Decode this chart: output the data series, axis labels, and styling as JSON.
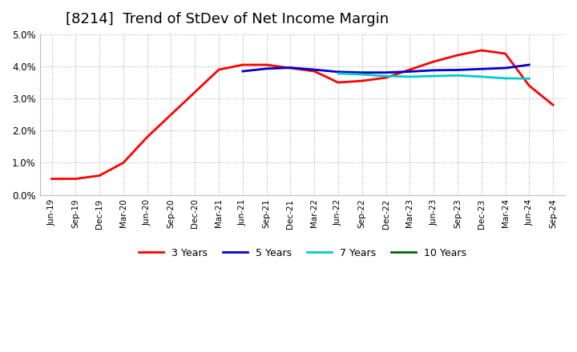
{
  "title": "[8214]  Trend of StDev of Net Income Margin",
  "title_fontsize": 13,
  "background_color": "#ffffff",
  "plot_background": "#ffffff",
  "grid_color": "#aaaaaa",
  "ylim": [
    0.0,
    0.05
  ],
  "yticks": [
    0.0,
    0.01,
    0.02,
    0.03,
    0.04,
    0.05
  ],
  "x_labels": [
    "Jun-19",
    "Sep-19",
    "Dec-19",
    "Mar-20",
    "Jun-20",
    "Sep-20",
    "Dec-20",
    "Mar-21",
    "Jun-21",
    "Sep-21",
    "Dec-21",
    "Mar-22",
    "Jun-22",
    "Sep-22",
    "Dec-22",
    "Mar-23",
    "Jun-23",
    "Sep-23",
    "Dec-23",
    "Mar-24",
    "Jun-24",
    "Sep-24"
  ],
  "series": {
    "3 Years": {
      "color": "#ff0000",
      "linewidth": 2.0,
      "values": [
        0.005,
        0.005,
        0.006,
        0.01,
        0.018,
        0.025,
        0.032,
        0.039,
        0.0405,
        0.0405,
        0.0395,
        0.0385,
        0.035,
        0.0355,
        0.0365,
        0.039,
        0.0415,
        0.0435,
        0.045,
        0.044,
        0.034,
        0.028
      ]
    },
    "5 Years": {
      "color": "#0000cc",
      "linewidth": 2.0,
      "values": [
        null,
        null,
        null,
        null,
        null,
        null,
        null,
        null,
        0.0385,
        0.0393,
        0.0396,
        0.039,
        0.0383,
        0.0381,
        0.0381,
        0.0384,
        0.0388,
        0.0389,
        0.0392,
        0.0395,
        0.0405,
        null
      ]
    },
    "7 Years": {
      "color": "#00cccc",
      "linewidth": 2.0,
      "values": [
        null,
        null,
        null,
        null,
        null,
        null,
        null,
        null,
        null,
        null,
        null,
        null,
        0.0378,
        0.0375,
        0.037,
        0.0368,
        0.037,
        0.0372,
        0.0368,
        0.0363,
        0.0362,
        null
      ]
    },
    "10 Years": {
      "color": "#006600",
      "linewidth": 2.0,
      "values": [
        null,
        null,
        null,
        null,
        null,
        null,
        null,
        null,
        null,
        null,
        null,
        null,
        null,
        null,
        null,
        null,
        null,
        null,
        null,
        null,
        null,
        null
      ]
    }
  },
  "legend_labels": [
    "3 Years",
    "5 Years",
    "7 Years",
    "10 Years"
  ],
  "legend_colors": [
    "#ff0000",
    "#0000cc",
    "#00cccc",
    "#006600"
  ]
}
